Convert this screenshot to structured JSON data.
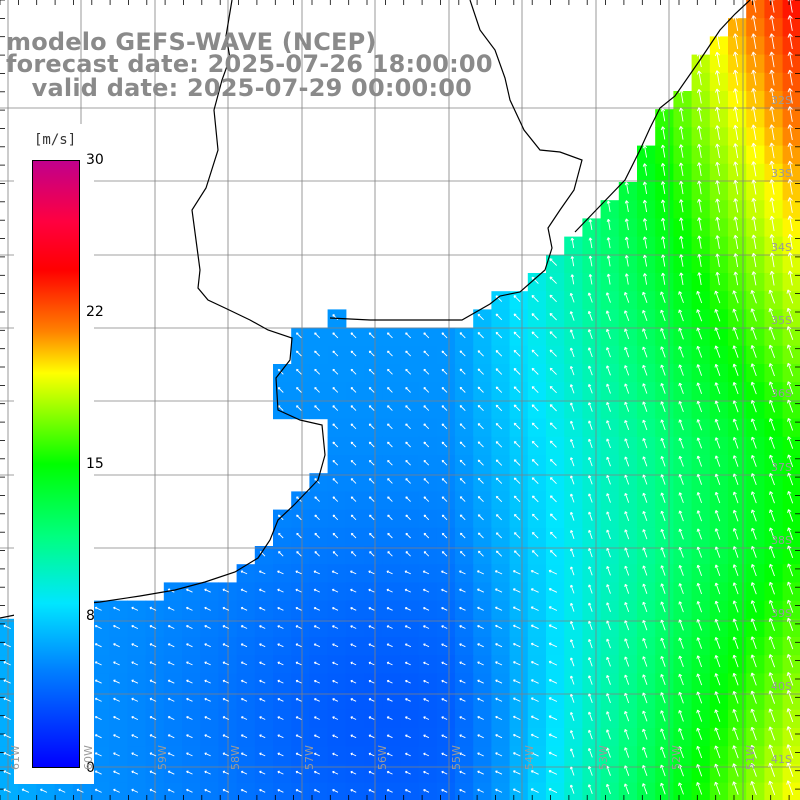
{
  "title": {
    "model": "modelo GEFS-WAVE (NCEP)",
    "forecast": "forecast date: 2025-07-26 18:00:00",
    "valid": "   valid date: 2025-07-29 00:00:00"
  },
  "colorbar": {
    "unit": "[m/s]",
    "ticks": [
      "30",
      "22",
      "15",
      "8",
      "0"
    ],
    "tick_values": [
      30,
      22,
      15,
      8,
      0
    ],
    "min": 0,
    "max": 30
  },
  "grid": {
    "lat_labels": [
      "32S",
      "33S",
      "34S",
      "35S",
      "36S",
      "37S",
      "38S",
      "39S",
      "40S",
      "41S"
    ],
    "lon_labels": [
      "61W",
      "60W",
      "59W",
      "58W",
      "57W",
      "56W",
      "55W",
      "54W",
      "53W",
      "52W",
      "51W"
    ]
  },
  "colors": {
    "land": "#ffffff",
    "coast": "#000000",
    "grid": "#808080",
    "title": "#8a8a8a",
    "arrow": "#ffffff"
  }
}
